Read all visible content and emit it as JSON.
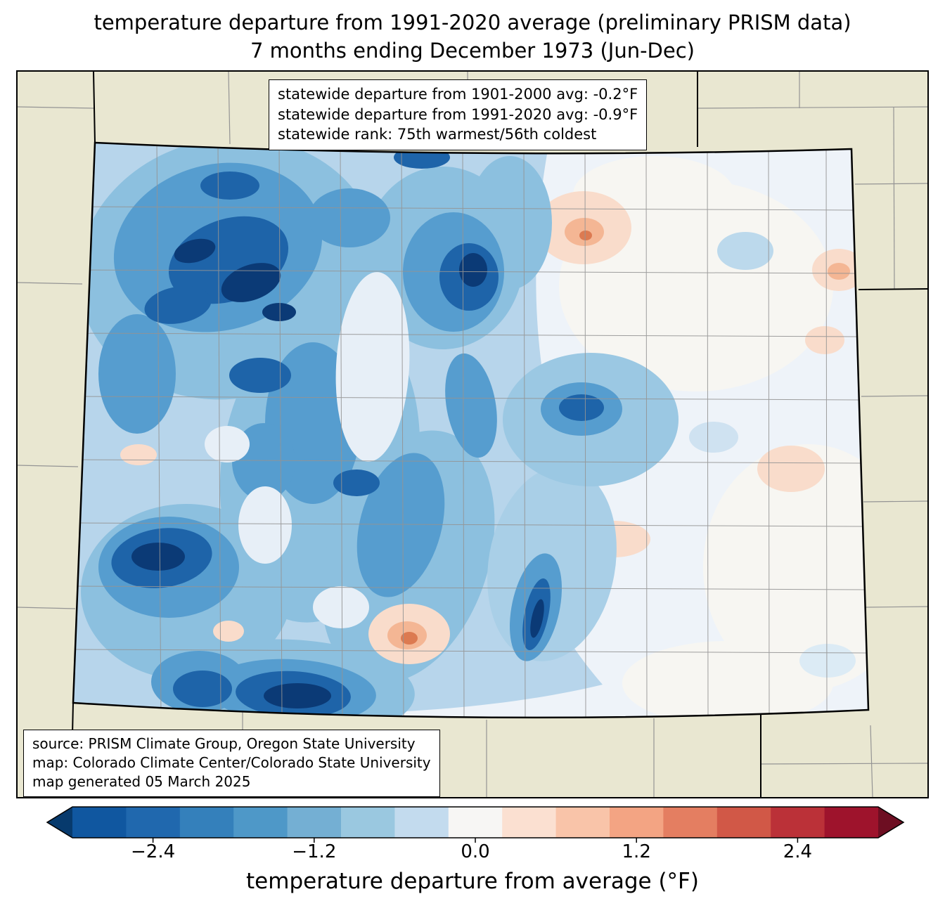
{
  "title": {
    "line1": "temperature departure from 1991-2020 average (preliminary PRISM data)",
    "line2": "7 months ending December 1973 (Jun-Dec)"
  },
  "stats_box": {
    "line1": "statewide departure from 1901-2000 avg: -0.2°F",
    "line2": "statewide departure from 1991-2020 avg: -0.9°F",
    "line3": "statewide rank: 75th warmest/56th coldest"
  },
  "source_box": {
    "line1": "source: PRISM Climate Group, Oregon State University",
    "line2": "map: Colorado Climate Center/Colorado State University",
    "line3": "map generated 05 March 2025"
  },
  "colorbar": {
    "label": "temperature departure from average (°F)",
    "min": -3.0,
    "max": 3.0,
    "ticks": [
      {
        "value": -2.4,
        "label": "−2.4"
      },
      {
        "value": -1.2,
        "label": "−1.2"
      },
      {
        "value": 0.0,
        "label": "0.0"
      },
      {
        "value": 1.2,
        "label": "1.2"
      },
      {
        "value": 2.4,
        "label": "2.4"
      }
    ],
    "segment_colors": [
      "#1057a0",
      "#2068ae",
      "#3480bb",
      "#4e98c8",
      "#74afd3",
      "#9ac8e0",
      "#c3dbee",
      "#f7f6f4",
      "#fbe0d1",
      "#f9c4a9",
      "#f3a483",
      "#e47e61",
      "#d15847",
      "#bb3138",
      "#9e132c"
    ],
    "left_arrow_color": "#073a6d",
    "right_arrow_color": "#6d0e22"
  },
  "map": {
    "region": "Colorado",
    "background_color": "#e9e7d1",
    "state_border_color": "#000000",
    "county_line_color": "#949494"
  },
  "chart_data": {
    "type": "choropleth_map",
    "title": "temperature departure from 1991-2020 average (preliminary PRISM data)",
    "subtitle": "7 months ending December 1973 (Jun-Dec)",
    "region": "Colorado with county boundaries, neighboring states in beige",
    "variable": "temperature departure from average (°F)",
    "baselines": {
      "statewide_departure_from_1901_2000_avg_F": -0.2,
      "statewide_departure_from_1991_2020_avg_F": -0.9
    },
    "statewide_rank": "75th warmest/56th coldest",
    "colorbar_range_F": [
      -3.0,
      3.0
    ],
    "colorbar_tick_values_F": [
      -2.4,
      -1.2,
      0.0,
      1.2,
      2.4
    ],
    "pattern_summary": "strong cold departures (down to about -2.8°F, dark navy) over western and mountain Colorado; near-zero to weakly warm departures (up to about +1.2°F, pale pink/salmon spots) over the eastern plains"
  }
}
